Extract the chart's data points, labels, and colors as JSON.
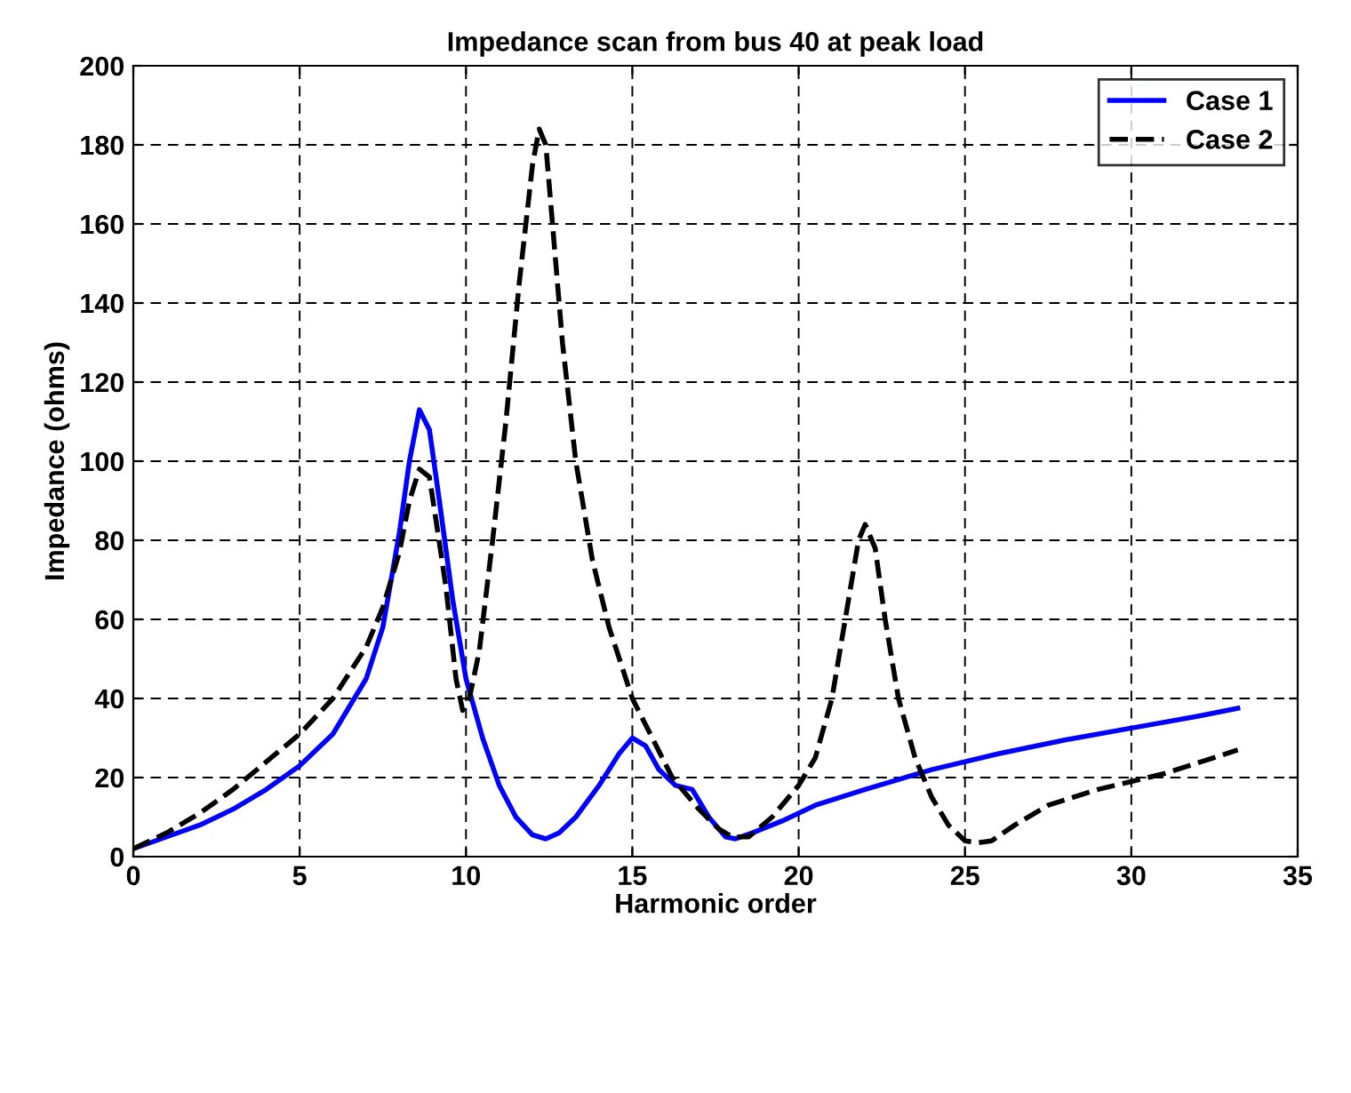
{
  "chart_data": {
    "type": "line",
    "title": "Impedance scan from bus 40 at peak load",
    "xlabel": "Harmonic order",
    "ylabel": "Impedance (ohms)",
    "xlim": [
      0,
      35
    ],
    "xticks": [
      0,
      5,
      10,
      15,
      20,
      25,
      30,
      35
    ],
    "ylim": [
      0,
      200
    ],
    "yticks": [
      0,
      20,
      40,
      60,
      80,
      100,
      120,
      140,
      160,
      180,
      200
    ],
    "grid": true,
    "legend": "top right",
    "series": [
      {
        "name": "Case 1",
        "color": "#0000ff",
        "line_style": "solid",
        "x": [
          0,
          1,
          2,
          3,
          4,
          5,
          6,
          7,
          7.5,
          8,
          8.3,
          8.6,
          8.9,
          9.2,
          9.6,
          10,
          10.5,
          11,
          11.5,
          12,
          12.4,
          12.8,
          13.3,
          14,
          14.6,
          15,
          15.4,
          15.8,
          16.3,
          16.8,
          17.3,
          17.8,
          18.1,
          18.6,
          19.5,
          20.5,
          22,
          24,
          26,
          28,
          30,
          32,
          33.2
        ],
        "values": [
          2,
          5,
          8,
          12,
          17,
          23,
          31,
          45,
          58,
          82,
          100,
          113,
          108,
          90,
          65,
          45,
          30,
          18,
          10,
          5.5,
          4.5,
          6,
          10,
          18,
          26,
          30,
          28,
          22,
          18,
          17,
          10,
          5,
          4.5,
          6,
          9,
          13,
          17,
          22,
          26,
          29.5,
          32.5,
          35.5,
          37.5
        ]
      },
      {
        "name": "Case 2",
        "color": "#000000",
        "line_style": "dashed",
        "x": [
          0,
          1,
          2,
          3,
          4,
          5,
          6,
          7,
          7.5,
          8,
          8.3,
          8.6,
          8.9,
          9.1,
          9.4,
          9.7,
          9.9,
          10.1,
          10.4,
          10.8,
          11.2,
          11.6,
          12,
          12.2,
          12.4,
          12.6,
          12.9,
          13.3,
          13.8,
          14.3,
          15,
          15.6,
          16.2,
          17,
          17.6,
          18,
          18.5,
          19.2,
          20,
          20.5,
          21,
          21.4,
          21.8,
          22,
          22.3,
          22.6,
          23,
          23.5,
          24,
          24.5,
          25,
          25.4,
          25.8,
          26.5,
          27.5,
          29,
          31,
          33.2
        ],
        "values": [
          2,
          6,
          11,
          17,
          24,
          31,
          40,
          53,
          63,
          77,
          90,
          98,
          96,
          85,
          68,
          45,
          37,
          40,
          52,
          80,
          110,
          145,
          175,
          184,
          180,
          160,
          130,
          100,
          75,
          58,
          40,
          30,
          20,
          12,
          7,
          5,
          5,
          10,
          18,
          25,
          40,
          60,
          80,
          84,
          78,
          60,
          40,
          25,
          15,
          8,
          4,
          3.5,
          4,
          8,
          13,
          17,
          21,
          27
        ]
      }
    ]
  }
}
